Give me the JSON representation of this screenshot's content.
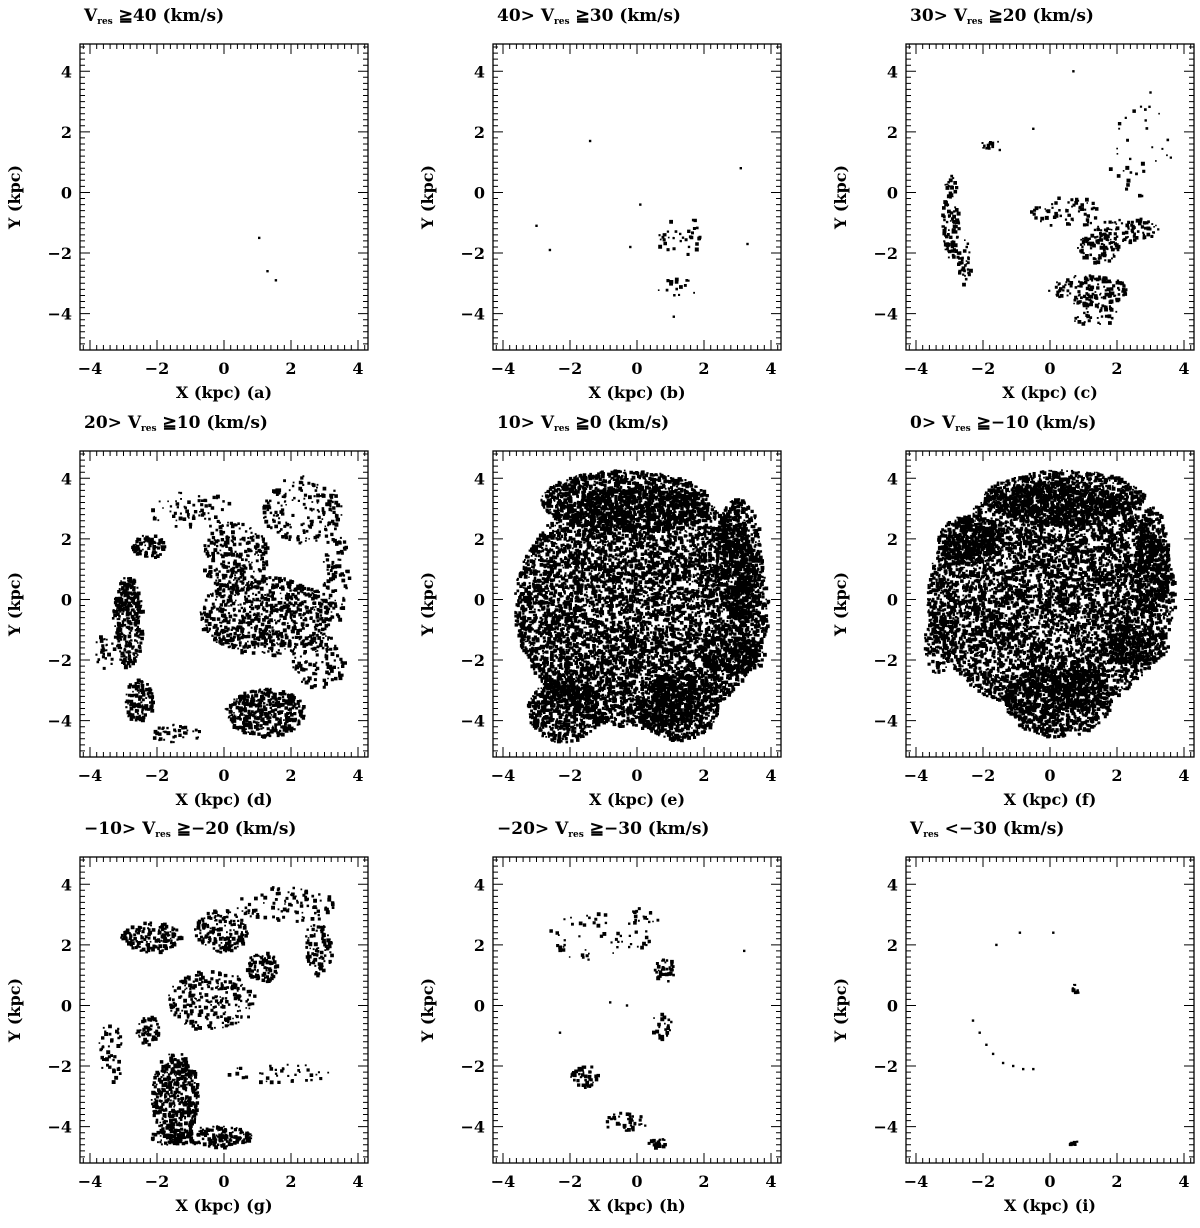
{
  "chart_data": [
    {
      "type": "scatter",
      "panel": "a",
      "title_lhs": "",
      "title_sym": "V",
      "title_sub": "res",
      "title_rhs": " ≧40 (km/s)",
      "xlabel": "X (kpc) (a)",
      "ylabel": "Y (kpc)",
      "xlim": [
        -4.3,
        4.3
      ],
      "ylim": [
        -5.2,
        4.9
      ],
      "xticks": [
        -4,
        -2,
        0,
        2,
        4
      ],
      "yticks": [
        -4,
        -2,
        0,
        2,
        4
      ],
      "density": "very sparse",
      "points": [
        [
          1.05,
          -1.5
        ],
        [
          1.3,
          -2.6
        ],
        [
          1.55,
          -2.9
        ]
      ],
      "regions": []
    },
    {
      "type": "scatter",
      "panel": "b",
      "title_lhs": "40> ",
      "title_sym": "V",
      "title_sub": "res",
      "title_rhs": " ≧30 (km/s)",
      "xlabel": "X (kpc) (b)",
      "ylabel": "Y (kpc)",
      "xlim": [
        -4.3,
        4.3
      ],
      "ylim": [
        -5.2,
        4.9
      ],
      "xticks": [
        -4,
        -2,
        0,
        2,
        4
      ],
      "yticks": [
        -4,
        -2,
        0,
        2,
        4
      ],
      "density": "sparse",
      "points": [
        [
          -3.0,
          -1.1
        ],
        [
          -2.6,
          -1.9
        ],
        [
          -1.4,
          1.7
        ],
        [
          3.1,
          0.8
        ],
        [
          3.3,
          -1.7
        ],
        [
          0.1,
          -0.4
        ],
        [
          1.1,
          -4.1
        ],
        [
          -0.2,
          -1.8
        ]
      ],
      "regions": [
        {
          "cx": 1.2,
          "cy": -1.6,
          "rx": 0.7,
          "ry": 0.45,
          "coverage": 0.18
        },
        {
          "cx": 1.1,
          "cy": -3.1,
          "rx": 0.8,
          "ry": 0.3,
          "coverage": 0.12
        },
        {
          "cx": 1.4,
          "cy": -1.0,
          "rx": 0.6,
          "ry": 0.2,
          "coverage": 0.1
        }
      ]
    },
    {
      "type": "scatter",
      "panel": "c",
      "title_lhs": "30> ",
      "title_sym": "V",
      "title_sub": "res",
      "title_rhs": " ≧20 (km/s)",
      "xlabel": "X (kpc) (c)",
      "ylabel": "Y (kpc)",
      "xlim": [
        -4.3,
        4.3
      ],
      "ylim": [
        -5.2,
        4.9
      ],
      "xticks": [
        -4,
        -2,
        0,
        2,
        4
      ],
      "yticks": [
        -4,
        -2,
        0,
        2,
        4
      ],
      "density": "moderate",
      "points": [
        [
          0.7,
          4.0
        ],
        [
          3.0,
          3.3
        ],
        [
          -0.5,
          2.1
        ],
        [
          -1.5,
          1.4
        ]
      ],
      "regions": [
        {
          "cx": -3.0,
          "cy": -0.8,
          "rx": 0.25,
          "ry": 1.4,
          "coverage": 0.55
        },
        {
          "cx": -2.6,
          "cy": -2.3,
          "rx": 0.2,
          "ry": 0.8,
          "coverage": 0.45
        },
        {
          "cx": -1.8,
          "cy": 1.6,
          "rx": 0.3,
          "ry": 0.15,
          "coverage": 0.5
        },
        {
          "cx": 1.4,
          "cy": -1.8,
          "rx": 0.6,
          "ry": 0.5,
          "coverage": 0.6
        },
        {
          "cx": 1.1,
          "cy": -3.2,
          "rx": 1.2,
          "ry": 0.5,
          "coverage": 0.45
        },
        {
          "cx": 2.3,
          "cy": -1.2,
          "rx": 1.0,
          "ry": 0.4,
          "coverage": 0.35
        },
        {
          "cx": 0.5,
          "cy": -0.6,
          "rx": 1.1,
          "ry": 0.5,
          "coverage": 0.2
        },
        {
          "cx": 1.3,
          "cy": -4.0,
          "rx": 0.7,
          "ry": 0.4,
          "coverage": 0.25
        },
        {
          "cx": 2.6,
          "cy": 1.5,
          "rx": 1.0,
          "ry": 1.6,
          "coverage": 0.04
        }
      ]
    },
    {
      "type": "scatter",
      "panel": "d",
      "title_lhs": "20> ",
      "title_sym": "V",
      "title_sub": "res",
      "title_rhs": " ≧10 (km/s)",
      "xlabel": "X (kpc) (d)",
      "ylabel": "Y (kpc)",
      "xlim": [
        -4.3,
        4.3
      ],
      "ylim": [
        -5.2,
        4.9
      ],
      "xticks": [
        -4,
        -2,
        0,
        2,
        4
      ],
      "yticks": [
        -4,
        -2,
        0,
        2,
        4
      ],
      "density": "dense",
      "points": [],
      "regions": [
        {
          "cx": -2.9,
          "cy": -0.7,
          "rx": 0.45,
          "ry": 1.5,
          "coverage": 0.92
        },
        {
          "cx": -2.6,
          "cy": -3.3,
          "rx": 0.45,
          "ry": 0.7,
          "coverage": 0.75
        },
        {
          "cx": -2.3,
          "cy": 1.8,
          "rx": 0.5,
          "ry": 0.4,
          "coverage": 0.8
        },
        {
          "cx": 1.2,
          "cy": -3.7,
          "rx": 1.2,
          "ry": 0.8,
          "coverage": 0.85
        },
        {
          "cx": 1.2,
          "cy": -0.5,
          "rx": 2.0,
          "ry": 1.3,
          "coverage": 0.55
        },
        {
          "cx": 0.3,
          "cy": 1.4,
          "rx": 1.0,
          "ry": 1.2,
          "coverage": 0.4
        },
        {
          "cx": 2.3,
          "cy": 3.0,
          "rx": 1.2,
          "ry": 1.1,
          "coverage": 0.25
        },
        {
          "cx": -1.0,
          "cy": 3.0,
          "rx": 1.3,
          "ry": 0.6,
          "coverage": 0.15
        },
        {
          "cx": -3.6,
          "cy": -1.7,
          "rx": 0.3,
          "ry": 0.6,
          "coverage": 0.3
        },
        {
          "cx": -1.4,
          "cy": -4.4,
          "rx": 0.8,
          "ry": 0.3,
          "coverage": 0.3
        },
        {
          "cx": 2.8,
          "cy": -2.0,
          "rx": 0.8,
          "ry": 0.9,
          "coverage": 0.3
        },
        {
          "cx": 3.3,
          "cy": 0.8,
          "rx": 0.4,
          "ry": 1.5,
          "coverage": 0.25
        }
      ]
    },
    {
      "type": "scatter",
      "panel": "e",
      "title_lhs": "10> ",
      "title_sym": "V",
      "title_sub": "res",
      "title_rhs": " ≧0 (km/s)",
      "xlabel": "X (kpc) (e)",
      "ylabel": "Y (kpc)",
      "xlim": [
        -4.3,
        4.3
      ],
      "ylim": [
        -5.2,
        4.9
      ],
      "xticks": [
        -4,
        -2,
        0,
        2,
        4
      ],
      "yticks": [
        -4,
        -2,
        0,
        2,
        4
      ],
      "density": "very dense",
      "points": [],
      "regions": [
        {
          "cx": 0.1,
          "cy": -0.2,
          "rx": 3.8,
          "ry": 4.0,
          "coverage": 0.82
        },
        {
          "cx": -0.4,
          "cy": 3.3,
          "rx": 2.5,
          "ry": 1.0,
          "coverage": 0.9
        },
        {
          "cx": -2.2,
          "cy": -3.6,
          "rx": 1.1,
          "ry": 1.1,
          "coverage": 0.95
        },
        {
          "cx": 1.2,
          "cy": -3.5,
          "rx": 1.2,
          "ry": 1.1,
          "coverage": 0.95
        },
        {
          "cx": 2.8,
          "cy": -1.8,
          "rx": 1.0,
          "ry": 0.6,
          "coverage": 0.9
        },
        {
          "cx": 3.0,
          "cy": 1.4,
          "rx": 0.7,
          "ry": 2.0,
          "coverage": 0.9
        }
      ]
    },
    {
      "type": "scatter",
      "panel": "f",
      "title_lhs": "0> ",
      "title_sym": "V",
      "title_sub": "res",
      "title_rhs": " ≧−10 (km/s)",
      "xlabel": "X (kpc) (f)",
      "ylabel": "Y (kpc)",
      "xlim": [
        -4.3,
        4.3
      ],
      "ylim": [
        -5.2,
        4.9
      ],
      "xticks": [
        -4,
        -2,
        0,
        2,
        4
      ],
      "yticks": [
        -4,
        -2,
        0,
        2,
        4
      ],
      "density": "very dense",
      "points": [],
      "regions": [
        {
          "cx": 0.0,
          "cy": 0.1,
          "rx": 3.7,
          "ry": 3.8,
          "coverage": 0.8
        },
        {
          "cx": 0.4,
          "cy": 3.4,
          "rx": 2.4,
          "ry": 0.9,
          "coverage": 0.9
        },
        {
          "cx": 0.2,
          "cy": -3.3,
          "rx": 1.6,
          "ry": 1.2,
          "coverage": 0.95
        },
        {
          "cx": 2.5,
          "cy": -1.5,
          "rx": 1.0,
          "ry": 0.6,
          "coverage": 0.85
        },
        {
          "cx": -2.4,
          "cy": 2.0,
          "rx": 1.0,
          "ry": 0.8,
          "coverage": 0.9
        },
        {
          "cx": 3.0,
          "cy": 1.3,
          "rx": 0.5,
          "ry": 1.8,
          "coverage": 0.9
        },
        {
          "cx": -3.3,
          "cy": -1.5,
          "rx": 0.5,
          "ry": 1.0,
          "coverage": 0.5
        }
      ]
    },
    {
      "type": "scatter",
      "panel": "g",
      "title_lhs": "−10> ",
      "title_sym": "V",
      "title_sub": "res",
      "title_rhs": " ≧−20 (km/s)",
      "xlabel": "X (kpc) (g)",
      "ylabel": "Y (kpc)",
      "xlim": [
        -4.3,
        4.3
      ],
      "ylim": [
        -5.2,
        4.9
      ],
      "xticks": [
        -4,
        -2,
        0,
        2,
        4
      ],
      "yticks": [
        -4,
        -2,
        0,
        2,
        4
      ],
      "density": "dense",
      "points": [],
      "regions": [
        {
          "cx": -1.5,
          "cy": -3.0,
          "rx": 0.7,
          "ry": 1.5,
          "coverage": 0.8
        },
        {
          "cx": -0.2,
          "cy": -4.3,
          "rx": 1.0,
          "ry": 0.35,
          "coverage": 0.85
        },
        {
          "cx": -2.3,
          "cy": -0.8,
          "rx": 0.35,
          "ry": 0.5,
          "coverage": 0.7
        },
        {
          "cx": -2.2,
          "cy": 2.3,
          "rx": 0.9,
          "ry": 0.5,
          "coverage": 0.65
        },
        {
          "cx": 1.1,
          "cy": 1.3,
          "rx": 0.5,
          "ry": 0.5,
          "coverage": 0.75
        },
        {
          "cx": -0.1,
          "cy": 2.5,
          "rx": 0.8,
          "ry": 0.7,
          "coverage": 0.55
        },
        {
          "cx": -0.4,
          "cy": 0.2,
          "rx": 1.3,
          "ry": 1.0,
          "coverage": 0.35
        },
        {
          "cx": 2.8,
          "cy": 2.0,
          "rx": 0.4,
          "ry": 1.0,
          "coverage": 0.45
        },
        {
          "cx": 1.8,
          "cy": 3.4,
          "rx": 1.5,
          "ry": 0.6,
          "coverage": 0.2
        },
        {
          "cx": 1.7,
          "cy": -2.2,
          "rx": 1.6,
          "ry": 0.3,
          "coverage": 0.15
        },
        {
          "cx": -3.4,
          "cy": -1.5,
          "rx": 0.4,
          "ry": 1.0,
          "coverage": 0.2
        },
        {
          "cx": -1.6,
          "cy": -4.3,
          "rx": 0.6,
          "ry": 0.3,
          "coverage": 0.45
        }
      ]
    },
    {
      "type": "scatter",
      "panel": "h",
      "title_lhs": "−20> ",
      "title_sym": "V",
      "title_sub": "res",
      "title_rhs": " ≧−30 (km/s)",
      "xlabel": "X (kpc) (h)",
      "ylabel": "Y (kpc)",
      "xlim": [
        -4.3,
        4.3
      ],
      "ylim": [
        -5.2,
        4.9
      ],
      "xticks": [
        -4,
        -2,
        0,
        2,
        4
      ],
      "yticks": [
        -4,
        -2,
        0,
        2,
        4
      ],
      "density": "sparse",
      "points": [
        [
          3.2,
          1.8
        ],
        [
          -2.3,
          -0.9
        ],
        [
          -0.8,
          0.1
        ],
        [
          -0.3,
          0.0
        ]
      ],
      "regions": [
        {
          "cx": -1.6,
          "cy": -2.3,
          "rx": 0.4,
          "ry": 0.4,
          "coverage": 0.55
        },
        {
          "cx": -0.4,
          "cy": -3.8,
          "rx": 0.7,
          "ry": 0.3,
          "coverage": 0.35
        },
        {
          "cx": 0.6,
          "cy": -4.5,
          "rx": 0.3,
          "ry": 0.15,
          "coverage": 0.9
        },
        {
          "cx": 0.8,
          "cy": 1.2,
          "rx": 0.3,
          "ry": 0.4,
          "coverage": 0.55
        },
        {
          "cx": 0.7,
          "cy": -0.6,
          "rx": 0.3,
          "ry": 0.5,
          "coverage": 0.3
        },
        {
          "cx": -1.2,
          "cy": 2.3,
          "rx": 1.6,
          "ry": 0.8,
          "coverage": 0.08
        },
        {
          "cx": 0.0,
          "cy": 3.0,
          "rx": 0.7,
          "ry": 0.3,
          "coverage": 0.15
        }
      ]
    },
    {
      "type": "scatter",
      "panel": "i",
      "title_lhs": "",
      "title_sym": "V",
      "title_sub": "res",
      "title_rhs": " <−30 (km/s)",
      "xlabel": "X (kpc) (i)",
      "ylabel": "Y (kpc)",
      "xlim": [
        -4.3,
        4.3
      ],
      "ylim": [
        -5.2,
        4.9
      ],
      "xticks": [
        -4,
        -2,
        0,
        2,
        4
      ],
      "yticks": [
        -4,
        -2,
        0,
        2,
        4
      ],
      "density": "very sparse",
      "points": [
        [
          -1.6,
          2.0
        ],
        [
          -0.9,
          2.4
        ],
        [
          0.1,
          2.4
        ],
        [
          -2.3,
          -0.5
        ],
        [
          -2.1,
          -0.9
        ],
        [
          -1.9,
          -1.3
        ],
        [
          -1.7,
          -1.6
        ],
        [
          -1.4,
          -1.9
        ],
        [
          -1.1,
          -2.0
        ],
        [
          -0.8,
          -2.1
        ],
        [
          -0.5,
          -2.1
        ]
      ],
      "regions": [
        {
          "cx": 0.75,
          "cy": 0.6,
          "rx": 0.12,
          "ry": 0.18,
          "coverage": 0.7
        },
        {
          "cx": 0.65,
          "cy": -4.5,
          "rx": 0.15,
          "ry": 0.1,
          "coverage": 0.95
        }
      ]
    }
  ]
}
